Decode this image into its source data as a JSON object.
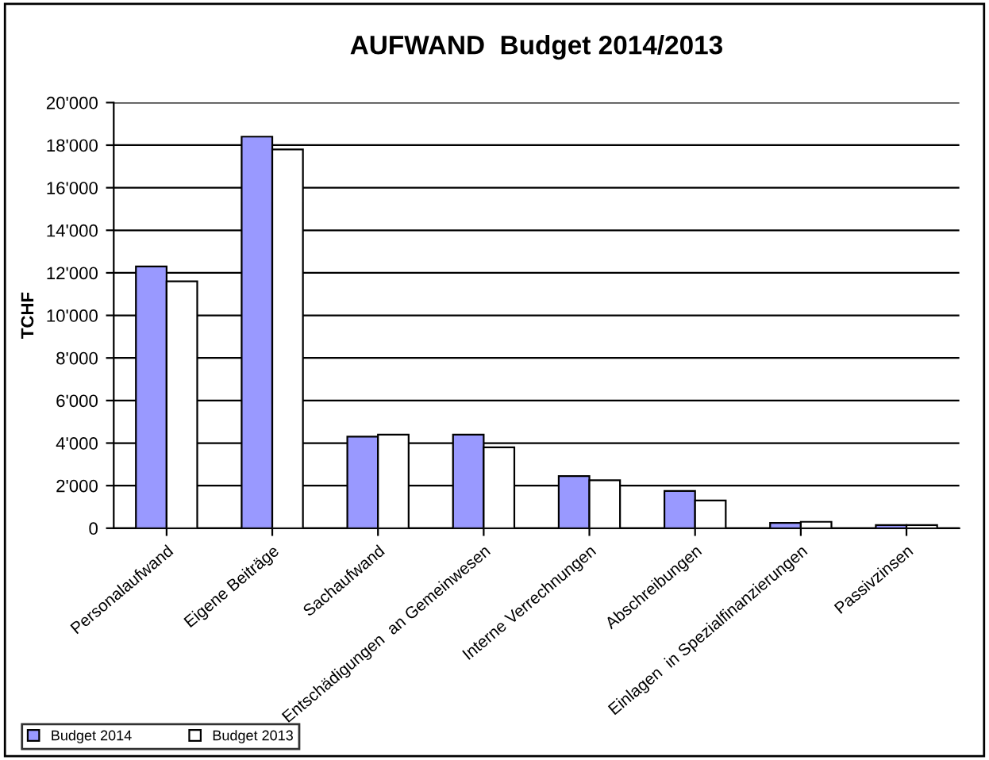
{
  "chart_data": {
    "type": "bar",
    "title": "AUFWAND  Budget 2014/2013",
    "ylabel": "TCHF",
    "categories": [
      "Personalaufwand",
      "Eigene Beiträge",
      "Sachaufwand",
      "Entschädigungen  an Gemeinwesen",
      "Interne Verrechnungen",
      "Abschreibungen",
      "Einlagen  in Spezialfinanzierungen",
      "Passivzinsen"
    ],
    "series": [
      {
        "name": "Budget 2014",
        "color": "#9999ff",
        "values": [
          12300,
          18400,
          4300,
          4400,
          2450,
          1750,
          250,
          150
        ]
      },
      {
        "name": "Budget 2013",
        "color": "#ffffff",
        "values": [
          11600,
          17800,
          4400,
          3800,
          2250,
          1300,
          300,
          150
        ]
      }
    ],
    "ylim": [
      0,
      20000
    ],
    "yticks": [
      {
        "value": 0,
        "label": "0"
      },
      {
        "value": 2000,
        "label": "2'000"
      },
      {
        "value": 4000,
        "label": "4'000"
      },
      {
        "value": 6000,
        "label": "6'000"
      },
      {
        "value": 8000,
        "label": "8'000"
      },
      {
        "value": 10000,
        "label": "10'000"
      },
      {
        "value": 12000,
        "label": "12'000"
      },
      {
        "value": 14000,
        "label": "14'000"
      },
      {
        "value": 16000,
        "label": "16'000"
      },
      {
        "value": 18000,
        "label": "18'000"
      },
      {
        "value": 20000,
        "label": "20'000"
      }
    ],
    "grid": "y",
    "legend": "bottom left"
  }
}
